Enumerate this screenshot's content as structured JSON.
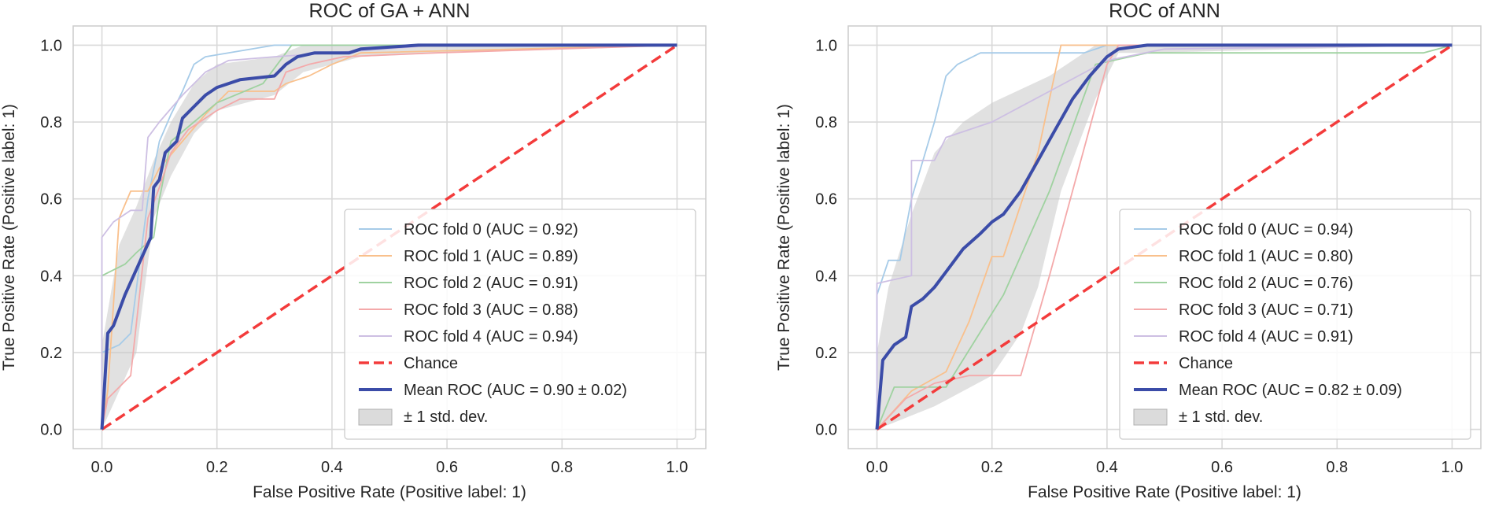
{
  "chart_data": [
    {
      "type": "line",
      "title": "ROC of GA + ANN",
      "xlabel": "False Positive Rate (Positive label: 1)",
      "ylabel": "True Positive Rate (Positive label: 1)",
      "xlim": [
        -0.05,
        1.05
      ],
      "ylim": [
        -0.05,
        1.05
      ],
      "xticks": [
        "0.0",
        "0.2",
        "0.4",
        "0.6",
        "0.8",
        "1.0"
      ],
      "yticks": [
        "0.0",
        "0.2",
        "0.4",
        "0.6",
        "0.8",
        "1.0"
      ],
      "grid": true,
      "legend_position": "lower right",
      "series": [
        {
          "name": "ROC fold 0 (AUC = 0.92)",
          "color": "#a6cbe8",
          "role": "fold",
          "points": [
            [
              0,
              0
            ],
            [
              0,
              0.2
            ],
            [
              0.03,
              0.22
            ],
            [
              0.05,
              0.25
            ],
            [
              0.08,
              0.6
            ],
            [
              0.1,
              0.75
            ],
            [
              0.12,
              0.82
            ],
            [
              0.14,
              0.88
            ],
            [
              0.16,
              0.95
            ],
            [
              0.18,
              0.97
            ],
            [
              0.3,
              1.0
            ],
            [
              1,
              1
            ]
          ]
        },
        {
          "name": "ROC fold 1 (AUC = 0.89)",
          "color": "#f9c08c",
          "role": "fold",
          "points": [
            [
              0,
              0
            ],
            [
              0.01,
              0.1
            ],
            [
              0.03,
              0.55
            ],
            [
              0.05,
              0.62
            ],
            [
              0.08,
              0.62
            ],
            [
              0.1,
              0.68
            ],
            [
              0.14,
              0.75
            ],
            [
              0.18,
              0.82
            ],
            [
              0.22,
              0.88
            ],
            [
              0.3,
              0.88
            ],
            [
              0.32,
              0.9
            ],
            [
              0.36,
              0.92
            ],
            [
              0.4,
              0.95
            ],
            [
              0.45,
              0.98
            ],
            [
              1,
              1
            ]
          ]
        },
        {
          "name": "ROC fold 2 (AUC = 0.91)",
          "color": "#9fd2a0",
          "role": "fold",
          "points": [
            [
              0,
              0
            ],
            [
              0,
              0.4
            ],
            [
              0.04,
              0.43
            ],
            [
              0.06,
              0.46
            ],
            [
              0.09,
              0.5
            ],
            [
              0.1,
              0.6
            ],
            [
              0.12,
              0.75
            ],
            [
              0.16,
              0.8
            ],
            [
              0.2,
              0.85
            ],
            [
              0.28,
              0.9
            ],
            [
              0.33,
              1.0
            ],
            [
              1,
              1
            ]
          ]
        },
        {
          "name": "ROC fold 3 (AUC = 0.88)",
          "color": "#f4a9aa",
          "role": "fold",
          "points": [
            [
              0,
              0
            ],
            [
              0.01,
              0.08
            ],
            [
              0.05,
              0.14
            ],
            [
              0.08,
              0.55
            ],
            [
              0.1,
              0.63
            ],
            [
              0.12,
              0.72
            ],
            [
              0.15,
              0.78
            ],
            [
              0.2,
              0.83
            ],
            [
              0.24,
              0.86
            ],
            [
              0.3,
              0.86
            ],
            [
              0.32,
              0.93
            ],
            [
              0.36,
              0.95
            ],
            [
              0.42,
              0.97
            ],
            [
              0.58,
              0.98
            ],
            [
              1,
              1
            ]
          ]
        },
        {
          "name": "ROC fold 4 (AUC = 0.94)",
          "color": "#cdbfe3",
          "role": "fold",
          "points": [
            [
              0,
              0
            ],
            [
              0,
              0.5
            ],
            [
              0.02,
              0.54
            ],
            [
              0.05,
              0.57
            ],
            [
              0.07,
              0.57
            ],
            [
              0.08,
              0.76
            ],
            [
              0.1,
              0.8
            ],
            [
              0.14,
              0.87
            ],
            [
              0.18,
              0.93
            ],
            [
              0.22,
              0.96
            ],
            [
              0.3,
              0.97
            ],
            [
              0.4,
              0.98
            ],
            [
              0.58,
              1.0
            ],
            [
              1,
              1
            ]
          ]
        },
        {
          "name": "Chance",
          "color": "#f33b3b",
          "role": "chance",
          "points": [
            [
              0,
              0
            ],
            [
              1,
              1
            ]
          ]
        },
        {
          "name": "Mean ROC (AUC = 0.90 ± 0.02)",
          "color": "#3b4ca8",
          "role": "mean",
          "points": [
            [
              0,
              0
            ],
            [
              0.01,
              0.25
            ],
            [
              0.02,
              0.27
            ],
            [
              0.04,
              0.35
            ],
            [
              0.07,
              0.45
            ],
            [
              0.085,
              0.5
            ],
            [
              0.09,
              0.63
            ],
            [
              0.1,
              0.65
            ],
            [
              0.11,
              0.72
            ],
            [
              0.13,
              0.75
            ],
            [
              0.14,
              0.81
            ],
            [
              0.16,
              0.84
            ],
            [
              0.18,
              0.87
            ],
            [
              0.2,
              0.89
            ],
            [
              0.24,
              0.91
            ],
            [
              0.3,
              0.92
            ],
            [
              0.32,
              0.95
            ],
            [
              0.34,
              0.97
            ],
            [
              0.37,
              0.98
            ],
            [
              0.43,
              0.98
            ],
            [
              0.45,
              0.99
            ],
            [
              0.55,
              1.0
            ],
            [
              1,
              1
            ]
          ]
        }
      ],
      "band": {
        "name": "± 1 std. dev.",
        "color": "#c8c8c8",
        "upper": [
          [
            0,
            0.22
          ],
          [
            0.03,
            0.48
          ],
          [
            0.06,
            0.58
          ],
          [
            0.09,
            0.7
          ],
          [
            0.12,
            0.8
          ],
          [
            0.16,
            0.9
          ],
          [
            0.2,
            0.95
          ],
          [
            0.3,
            0.97
          ],
          [
            0.35,
            1.0
          ],
          [
            1,
            1
          ]
        ],
        "lower": [
          [
            0,
            0
          ],
          [
            0.03,
            0.1
          ],
          [
            0.06,
            0.2
          ],
          [
            0.09,
            0.55
          ],
          [
            0.12,
            0.66
          ],
          [
            0.16,
            0.77
          ],
          [
            0.2,
            0.83
          ],
          [
            0.3,
            0.87
          ],
          [
            0.35,
            0.93
          ],
          [
            0.45,
            0.97
          ],
          [
            0.6,
            0.98
          ],
          [
            1,
            1
          ]
        ]
      },
      "legend": [
        {
          "label": "ROC fold 0 (AUC = 0.92)",
          "color": "#a6cbe8",
          "kind": "fold"
        },
        {
          "label": "ROC fold 1 (AUC = 0.89)",
          "color": "#f9c08c",
          "kind": "fold"
        },
        {
          "label": "ROC fold 2 (AUC = 0.91)",
          "color": "#9fd2a0",
          "kind": "fold"
        },
        {
          "label": "ROC fold 3 (AUC = 0.88)",
          "color": "#f4a9aa",
          "kind": "fold"
        },
        {
          "label": "ROC fold 4 (AUC = 0.94)",
          "color": "#cdbfe3",
          "kind": "fold"
        },
        {
          "label": "Chance",
          "color": "#f33b3b",
          "kind": "chance"
        },
        {
          "label": "Mean ROC (AUC = 0.90 ± 0.02)",
          "color": "#3b4ca8",
          "kind": "mean"
        },
        {
          "label": "± 1 std. dev.",
          "color": "#c8c8c8",
          "kind": "band"
        }
      ]
    },
    {
      "type": "line",
      "title": "ROC of ANN",
      "xlabel": "False Positive Rate (Positive label: 1)",
      "ylabel": "True Positive Rate (Positive label: 1)",
      "xlim": [
        -0.05,
        1.05
      ],
      "ylim": [
        -0.05,
        1.05
      ],
      "xticks": [
        "0.0",
        "0.2",
        "0.4",
        "0.6",
        "0.8",
        "1.0"
      ],
      "yticks": [
        "0.0",
        "0.2",
        "0.4",
        "0.6",
        "0.8",
        "1.0"
      ],
      "grid": true,
      "legend_position": "lower right",
      "series": [
        {
          "name": "ROC fold 0 (AUC = 0.94)",
          "color": "#a6cbe8",
          "role": "fold",
          "points": [
            [
              0,
              0
            ],
            [
              0,
              0.35
            ],
            [
              0.02,
              0.44
            ],
            [
              0.04,
              0.44
            ],
            [
              0.06,
              0.6
            ],
            [
              0.1,
              0.8
            ],
            [
              0.12,
              0.92
            ],
            [
              0.14,
              0.95
            ],
            [
              0.18,
              0.98
            ],
            [
              0.36,
              0.98
            ],
            [
              0.4,
              1.0
            ],
            [
              1,
              1
            ]
          ]
        },
        {
          "name": "ROC fold 1 (AUC = 0.80)",
          "color": "#f9c08c",
          "role": "fold",
          "points": [
            [
              0,
              0
            ],
            [
              0.06,
              0.1
            ],
            [
              0.12,
              0.15
            ],
            [
              0.16,
              0.28
            ],
            [
              0.2,
              0.45
            ],
            [
              0.22,
              0.45
            ],
            [
              0.28,
              0.72
            ],
            [
              0.32,
              1.0
            ],
            [
              1,
              1
            ]
          ]
        },
        {
          "name": "ROC fold 2 (AUC = 0.76)",
          "color": "#9fd2a0",
          "role": "fold",
          "points": [
            [
              0,
              0
            ],
            [
              0.03,
              0.11
            ],
            [
              0.12,
              0.11
            ],
            [
              0.22,
              0.35
            ],
            [
              0.3,
              0.62
            ],
            [
              0.38,
              0.95
            ],
            [
              0.47,
              0.98
            ],
            [
              0.95,
              0.98
            ],
            [
              1,
              1
            ]
          ]
        },
        {
          "name": "ROC fold 3 (AUC = 0.71)",
          "color": "#f4a9aa",
          "role": "fold",
          "points": [
            [
              0,
              0
            ],
            [
              0.05,
              0.08
            ],
            [
              0.1,
              0.12
            ],
            [
              0.16,
              0.14
            ],
            [
              0.25,
              0.14
            ],
            [
              0.3,
              0.4
            ],
            [
              0.4,
              0.95
            ],
            [
              0.42,
              1.0
            ],
            [
              1,
              1
            ]
          ]
        },
        {
          "name": "ROC fold 4 (AUC = 0.91)",
          "color": "#cdbfe3",
          "role": "fold",
          "points": [
            [
              0,
              0
            ],
            [
              0,
              0.38
            ],
            [
              0.06,
              0.4
            ],
            [
              0.06,
              0.7
            ],
            [
              0.1,
              0.7
            ],
            [
              0.12,
              0.76
            ],
            [
              0.2,
              0.8
            ],
            [
              0.3,
              0.88
            ],
            [
              0.4,
              0.96
            ],
            [
              0.5,
              0.99
            ],
            [
              1,
              1
            ]
          ]
        },
        {
          "name": "Chance",
          "color": "#f33b3b",
          "role": "chance",
          "points": [
            [
              0,
              0
            ],
            [
              1,
              1
            ]
          ]
        },
        {
          "name": "Mean ROC (AUC = 0.82 ± 0.09)",
          "color": "#3b4ca8",
          "role": "mean",
          "points": [
            [
              0,
              0
            ],
            [
              0.01,
              0.18
            ],
            [
              0.03,
              0.22
            ],
            [
              0.05,
              0.24
            ],
            [
              0.06,
              0.32
            ],
            [
              0.08,
              0.34
            ],
            [
              0.1,
              0.37
            ],
            [
              0.12,
              0.41
            ],
            [
              0.15,
              0.47
            ],
            [
              0.18,
              0.51
            ],
            [
              0.2,
              0.54
            ],
            [
              0.22,
              0.56
            ],
            [
              0.25,
              0.62
            ],
            [
              0.28,
              0.7
            ],
            [
              0.31,
              0.78
            ],
            [
              0.34,
              0.86
            ],
            [
              0.37,
              0.92
            ],
            [
              0.4,
              0.97
            ],
            [
              0.42,
              0.99
            ],
            [
              0.47,
              1.0
            ],
            [
              1,
              1
            ]
          ]
        },
        {
          "name": "± 1 std. dev.",
          "color": "#c8c8c8",
          "role": "band_placeholder",
          "points": []
        }
      ],
      "band": {
        "name": "± 1 std. dev.",
        "color": "#c8c8c8",
        "upper": [
          [
            0,
            0.2
          ],
          [
            0.02,
            0.37
          ],
          [
            0.06,
            0.56
          ],
          [
            0.1,
            0.72
          ],
          [
            0.15,
            0.8
          ],
          [
            0.2,
            0.85
          ],
          [
            0.3,
            0.92
          ],
          [
            0.38,
            1.0
          ],
          [
            1,
            1
          ]
        ],
        "lower": [
          [
            0,
            0
          ],
          [
            0.05,
            0.03
          ],
          [
            0.1,
            0.06
          ],
          [
            0.15,
            0.1
          ],
          [
            0.2,
            0.14
          ],
          [
            0.25,
            0.25
          ],
          [
            0.28,
            0.37
          ],
          [
            0.32,
            0.62
          ],
          [
            0.38,
            0.86
          ],
          [
            0.42,
            0.98
          ],
          [
            0.47,
            0.98
          ],
          [
            1,
            1
          ]
        ]
      },
      "legend": [
        {
          "label": "ROC fold 0 (AUC = 0.94)",
          "color": "#a6cbe8",
          "kind": "fold"
        },
        {
          "label": "ROC fold 1 (AUC = 0.80)",
          "color": "#f9c08c",
          "kind": "fold"
        },
        {
          "label": "ROC fold 2 (AUC = 0.76)",
          "color": "#9fd2a0",
          "kind": "fold"
        },
        {
          "label": "ROC fold 3 (AUC = 0.71)",
          "color": "#f4a9aa",
          "kind": "fold"
        },
        {
          "label": "ROC fold 4 (AUC = 0.91)",
          "color": "#cdbfe3",
          "kind": "fold"
        },
        {
          "label": "Chance",
          "color": "#f33b3b",
          "kind": "chance"
        },
        {
          "label": "Mean ROC (AUC = 0.82 ± 0.09)",
          "color": "#3b4ca8",
          "kind": "mean"
        },
        {
          "label": "± 1 std. dev.",
          "color": "#c8c8c8",
          "kind": "band"
        }
      ]
    }
  ]
}
